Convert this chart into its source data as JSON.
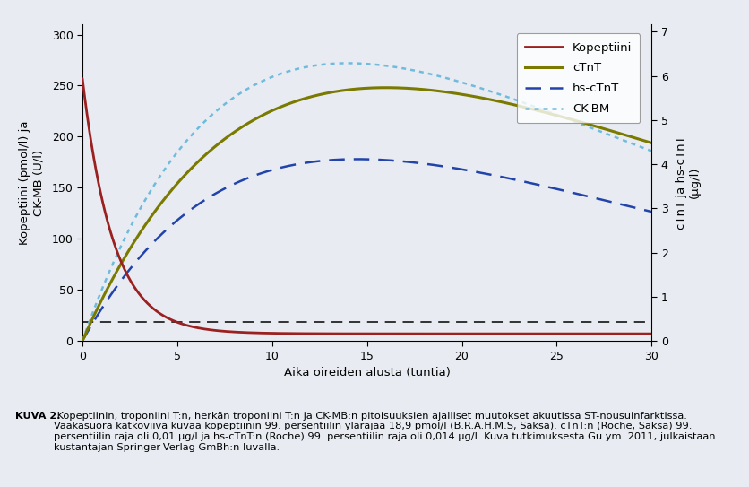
{
  "xlabel": "Aika oireiden alusta (tuntia)",
  "ylabel_left": "Kopeptiini (pmol/l) ja\nCK-MB (U/l)",
  "ylabel_right": "cTnT ja hs-cTnT\n(µg/l)",
  "xlim": [
    0,
    30
  ],
  "ylim_left": [
    0,
    310
  ],
  "ylim_right": [
    0,
    7.167
  ],
  "xticks": [
    0,
    5,
    10,
    15,
    20,
    25,
    30
  ],
  "yticks_left": [
    0,
    50,
    100,
    150,
    200,
    250,
    300
  ],
  "yticks_right": [
    0,
    1,
    2,
    3,
    4,
    5,
    6,
    7
  ],
  "dashed_line_y": 18.9,
  "kopeptiini_color": "#9B2020",
  "cTnT_color": "#7A7A00",
  "hs_cTnT_color": "#2244AA",
  "CK_BM_color": "#70BBDD",
  "background_color": "#E8ECF2",
  "paper_color": "#F0F2F7",
  "legend_labels": [
    "Kopeptiini",
    "cTnT",
    "hs-cTnT",
    "CK-BM"
  ],
  "caption_bold": "KUVA 2.",
  "caption_rest": " Kopeptiinin, troponiini T:n, herkän troponiini T:n ja CK-MB:n pitoisuuksien ajalliset muutokset akuutissa ST-nousuinfarktissa. Vaakasuora katkoviiva kuvaa kopeptiinin 99. persentiilin ylärajaa 18,9 pmol/l (B.R.A.H.M.S, Saksa). cTnT:n (Roche, Saksa) 99. persentiilin raja oli 0,01 µg/l ja hs-cTnT:n (Roche) 99. persentiilin raja oli 0,014 µg/l. Kuva tutkimuksesta Gu ym. 2011, julkaistaan kustantajan Springer-Verlag GmBh:n luvalla."
}
